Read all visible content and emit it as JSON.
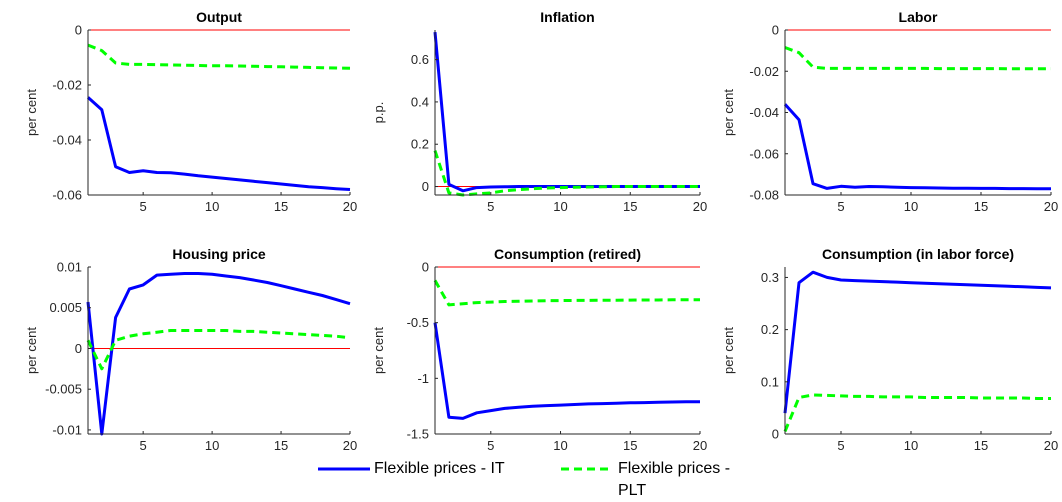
{
  "colors": {
    "it": "#0000ff",
    "plt": "#00ff00",
    "zero": "#ff0000",
    "axis": "#262626"
  },
  "legend": {
    "it_label": "Flexible prices - IT",
    "plt_label": "Flexible prices - PLT"
  },
  "chart_data": [
    {
      "type": "line",
      "title": "Output",
      "ylabel": "per cent",
      "xlim": [
        1,
        20
      ],
      "ylim": [
        -0.06,
        0
      ],
      "xticks": [
        "5",
        "10",
        "15",
        "20"
      ],
      "yticks": [
        "-0.06",
        "-0.04",
        "-0.02",
        "0"
      ],
      "ytick_values": [
        -0.06,
        -0.04,
        -0.02,
        0
      ],
      "x": [
        1,
        2,
        3,
        4,
        5,
        6,
        7,
        8,
        9,
        10,
        11,
        12,
        13,
        14,
        15,
        16,
        17,
        18,
        19,
        20
      ],
      "series": [
        {
          "name": "Flexible prices - IT",
          "values": [
            -0.0245,
            -0.029,
            -0.0497,
            -0.0518,
            -0.0512,
            -0.0518,
            -0.0519,
            -0.0524,
            -0.053,
            -0.0535,
            -0.054,
            -0.0545,
            -0.055,
            -0.0555,
            -0.056,
            -0.0565,
            -0.057,
            -0.0573,
            -0.0577,
            -0.058
          ]
        },
        {
          "name": "Flexible prices - PLT",
          "values": [
            -0.0055,
            -0.0075,
            -0.012,
            -0.0125,
            -0.0125,
            -0.0126,
            -0.0127,
            -0.0128,
            -0.0129,
            -0.013,
            -0.013,
            -0.0131,
            -0.0132,
            -0.0133,
            -0.0134,
            -0.0135,
            -0.0136,
            -0.0137,
            -0.0138,
            -0.0139
          ]
        }
      ]
    },
    {
      "type": "line",
      "title": "Inflation",
      "ylabel": "p.p.",
      "xlim": [
        1,
        20
      ],
      "ylim": [
        -0.04,
        0.74
      ],
      "xticks": [
        "5",
        "10",
        "15",
        "20"
      ],
      "yticks": [
        "0",
        "0.2",
        "0.4",
        "0.6"
      ],
      "ytick_values": [
        0,
        0.2,
        0.4,
        0.6
      ],
      "x": [
        1,
        2,
        3,
        4,
        5,
        6,
        7,
        8,
        9,
        10,
        11,
        12,
        13,
        14,
        15,
        16,
        17,
        18,
        19,
        20
      ],
      "series": [
        {
          "name": "Flexible prices - IT",
          "values": [
            0.73,
            0.01,
            -0.02,
            -0.005,
            -0.002,
            -0.001,
            0,
            0,
            0,
            0,
            0,
            0,
            0,
            0,
            0,
            0,
            0,
            0,
            0,
            0
          ]
        },
        {
          "name": "Flexible prices - PLT",
          "values": [
            0.17,
            -0.03,
            -0.04,
            -0.035,
            -0.03,
            -0.02,
            -0.015,
            -0.01,
            -0.007,
            -0.005,
            -0.003,
            -0.002,
            -0.001,
            0,
            0,
            0,
            0,
            0,
            0,
            0
          ]
        }
      ]
    },
    {
      "type": "line",
      "title": "Labor",
      "ylabel": "per cent",
      "xlim": [
        1,
        20
      ],
      "ylim": [
        -0.08,
        0
      ],
      "xticks": [
        "5",
        "10",
        "15",
        "20"
      ],
      "yticks": [
        "-0.08",
        "-0.06",
        "-0.04",
        "-0.02",
        "0"
      ],
      "ytick_values": [
        -0.08,
        -0.06,
        -0.04,
        -0.02,
        0
      ],
      "x": [
        1,
        2,
        3,
        4,
        5,
        6,
        7,
        8,
        9,
        10,
        11,
        12,
        13,
        14,
        15,
        16,
        17,
        18,
        19,
        20
      ],
      "series": [
        {
          "name": "Flexible prices - IT",
          "values": [
            -0.036,
            -0.0435,
            -0.0745,
            -0.0768,
            -0.0758,
            -0.0762,
            -0.0759,
            -0.076,
            -0.0762,
            -0.0764,
            -0.0765,
            -0.0766,
            -0.0767,
            -0.0767,
            -0.0768,
            -0.0768,
            -0.0769,
            -0.0769,
            -0.077,
            -0.077
          ]
        },
        {
          "name": "Flexible prices - PLT",
          "values": [
            -0.0085,
            -0.011,
            -0.018,
            -0.0186,
            -0.0186,
            -0.0186,
            -0.0186,
            -0.0186,
            -0.0186,
            -0.0186,
            -0.0186,
            -0.0187,
            -0.0187,
            -0.0187,
            -0.0187,
            -0.0187,
            -0.0188,
            -0.0188,
            -0.0188,
            -0.0188
          ]
        }
      ]
    },
    {
      "type": "line",
      "title": "Housing price",
      "ylabel": "per cent",
      "xlim": [
        1,
        20
      ],
      "ylim": [
        -0.0105,
        0.01
      ],
      "xticks": [
        "5",
        "10",
        "15",
        "20"
      ],
      "yticks": [
        "-0.01",
        "-0.005",
        "0",
        "0.005",
        "0.01"
      ],
      "ytick_values": [
        -0.01,
        -0.005,
        0,
        0.005,
        0.01
      ],
      "x": [
        1,
        2,
        3,
        4,
        5,
        6,
        7,
        8,
        9,
        10,
        11,
        12,
        13,
        14,
        15,
        16,
        17,
        18,
        19,
        20
      ],
      "series": [
        {
          "name": "Flexible prices - IT",
          "values": [
            0.0057,
            -0.0105,
            0.0038,
            0.0073,
            0.0078,
            0.009,
            0.0091,
            0.0092,
            0.0092,
            0.0091,
            0.0089,
            0.0087,
            0.0084,
            0.0081,
            0.0077,
            0.0073,
            0.0069,
            0.0065,
            0.006,
            0.0055
          ]
        },
        {
          "name": "Flexible prices - PLT",
          "values": [
            0.001,
            -0.0025,
            0.001,
            0.0015,
            0.0018,
            0.002,
            0.0022,
            0.0022,
            0.0022,
            0.0022,
            0.0022,
            0.0021,
            0.0021,
            0.002,
            0.0019,
            0.0018,
            0.0017,
            0.0016,
            0.0015,
            0.0013
          ]
        }
      ]
    },
    {
      "type": "line",
      "title": "Consumption (retired)",
      "ylabel": "per cent",
      "xlim": [
        1,
        20
      ],
      "ylim": [
        -1.5,
        0
      ],
      "xticks": [
        "5",
        "10",
        "15",
        "20"
      ],
      "yticks": [
        "-1.5",
        "-1",
        "-0.5",
        "0"
      ],
      "ytick_values": [
        -1.5,
        -1,
        -0.5,
        0
      ],
      "x": [
        1,
        2,
        3,
        4,
        5,
        6,
        7,
        8,
        9,
        10,
        11,
        12,
        13,
        14,
        15,
        16,
        17,
        18,
        19,
        20
      ],
      "series": [
        {
          "name": "Flexible prices - IT",
          "values": [
            -0.5,
            -1.35,
            -1.36,
            -1.31,
            -1.29,
            -1.27,
            -1.26,
            -1.25,
            -1.245,
            -1.24,
            -1.235,
            -1.23,
            -1.227,
            -1.224,
            -1.22,
            -1.218,
            -1.215,
            -1.213,
            -1.21,
            -1.21
          ]
        },
        {
          "name": "Flexible prices - PLT",
          "values": [
            -0.12,
            -0.34,
            -0.33,
            -0.32,
            -0.315,
            -0.31,
            -0.308,
            -0.305,
            -0.303,
            -0.302,
            -0.3,
            -0.3,
            -0.298,
            -0.298,
            -0.297,
            -0.296,
            -0.296,
            -0.295,
            -0.295,
            -0.295
          ]
        }
      ]
    },
    {
      "type": "line",
      "title": "Consumption (in labor force)",
      "ylabel": "per cent",
      "xlim": [
        1,
        20
      ],
      "ylim": [
        0,
        0.32
      ],
      "xticks": [
        "5",
        "10",
        "15",
        "20"
      ],
      "yticks": [
        "0",
        "0.1",
        "0.2",
        "0.3"
      ],
      "ytick_values": [
        0,
        0.1,
        0.2,
        0.3
      ],
      "x": [
        1,
        2,
        3,
        4,
        5,
        6,
        7,
        8,
        9,
        10,
        11,
        12,
        13,
        14,
        15,
        16,
        17,
        18,
        19,
        20
      ],
      "series": [
        {
          "name": "Flexible prices - IT",
          "values": [
            0.04,
            0.29,
            0.31,
            0.3,
            0.295,
            0.294,
            0.293,
            0.292,
            0.291,
            0.29,
            0.289,
            0.288,
            0.287,
            0.286,
            0.285,
            0.284,
            0.283,
            0.282,
            0.281,
            0.28
          ]
        },
        {
          "name": "Flexible prices - PLT",
          "values": [
            0.005,
            0.07,
            0.075,
            0.074,
            0.073,
            0.072,
            0.072,
            0.071,
            0.071,
            0.071,
            0.07,
            0.07,
            0.07,
            0.07,
            0.069,
            0.069,
            0.069,
            0.069,
            0.068,
            0.068
          ]
        }
      ]
    }
  ]
}
